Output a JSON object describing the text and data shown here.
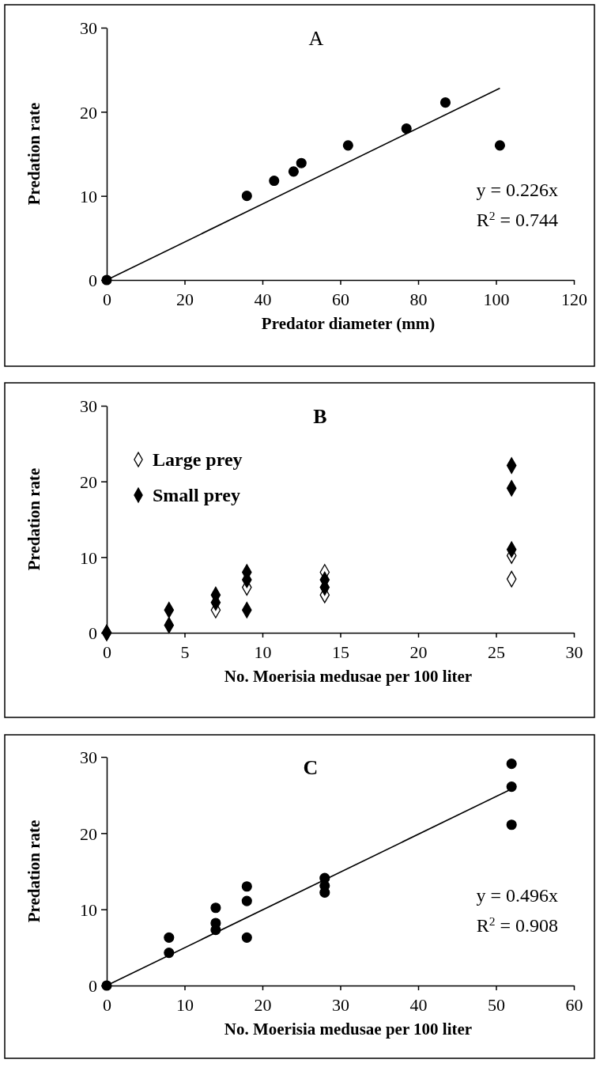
{
  "chart_data": [
    {
      "type": "scatter",
      "title": "A",
      "xlabel": "Predator diameter (mm)",
      "ylabel": "Predation rate",
      "xlim": [
        0,
        120
      ],
      "xticks": [
        0,
        20,
        40,
        60,
        80,
        100,
        120
      ],
      "ylim": [
        0,
        30
      ],
      "yticks": [
        0,
        10,
        20,
        30
      ],
      "annotations": [
        "y = 0.226x",
        "R$^{2}$ = 0.744"
      ],
      "series": [
        {
          "marker": "circle",
          "color": "#000000",
          "x": [
            0,
            36,
            43,
            48,
            50,
            62,
            77,
            87,
            101
          ],
          "values": [
            0,
            10,
            11.8,
            12.9,
            13.9,
            16,
            18,
            21.1,
            16
          ]
        },
        {
          "type": "line",
          "marker": "none",
          "color": "#000000",
          "x": [
            0,
            101
          ],
          "values": [
            0,
            22.8
          ]
        }
      ]
    },
    {
      "type": "scatter",
      "title": "B",
      "xlabel": "No. Moerisia  medusae per 100 liter",
      "ylabel": "Predation rate",
      "marker": "diamond",
      "legend": "top left",
      "xlim": [
        0,
        30
      ],
      "xticks": [
        0,
        5,
        10,
        15,
        20,
        25,
        30
      ],
      "ylim": [
        0,
        30
      ],
      "yticks": [
        0,
        10,
        20,
        30
      ],
      "series": [
        {
          "name": "Large prey",
          "color": "#ffffff",
          "x": [
            0,
            7,
            9,
            14,
            14,
            26,
            26
          ],
          "values": [
            0,
            3,
            6,
            8,
            5,
            10.2,
            7.1
          ]
        },
        {
          "name": "Small prey",
          "color": "#000000",
          "x": [
            0,
            4,
            4,
            7,
            7,
            9,
            9,
            9,
            14,
            14,
            26,
            26,
            26
          ],
          "values": [
            0,
            3,
            1,
            5,
            4,
            8,
            7,
            3,
            7,
            6,
            22.1,
            19.1,
            11
          ]
        }
      ]
    },
    {
      "type": "scatter",
      "title": "C",
      "xlabel": "No. Moerisia  medusae per 100 liter",
      "ylabel": "Predation rate",
      "xlim": [
        0,
        60
      ],
      "xticks": [
        0,
        10,
        20,
        30,
        40,
        50,
        60
      ],
      "ylim": [
        0,
        30
      ],
      "yticks": [
        0,
        10,
        20,
        30
      ],
      "annotations": [
        "y = 0.496x",
        "R$^{2}$ = 0.908"
      ],
      "series": [
        {
          "marker": "circle",
          "color": "#000000",
          "x": [
            0,
            8,
            8,
            14,
            14,
            14,
            18,
            18,
            18,
            28,
            28,
            28,
            52,
            52,
            52
          ],
          "values": [
            0,
            6.3,
            4.3,
            10.2,
            8.2,
            7.3,
            13,
            11.1,
            6.3,
            14.1,
            13.1,
            12.2,
            29.1,
            26.1,
            21.1
          ]
        },
        {
          "type": "line",
          "marker": "none",
          "color": "#000000",
          "x": [
            0,
            52
          ],
          "values": [
            0,
            25.8
          ]
        }
      ]
    }
  ]
}
